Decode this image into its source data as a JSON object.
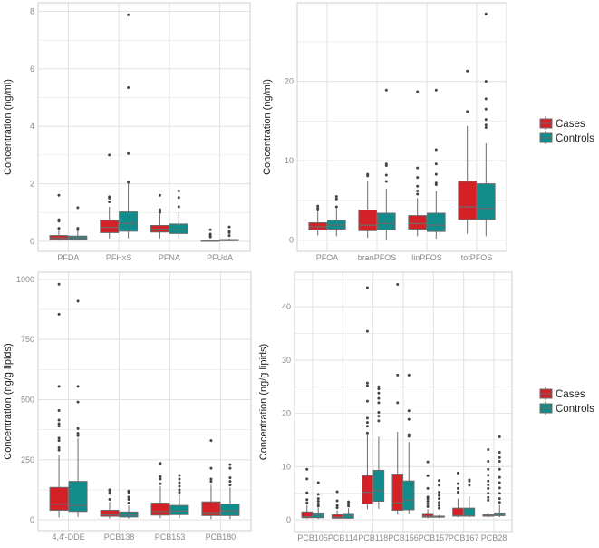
{
  "colors": {
    "Cases": "#d42027",
    "Controls": "#128b8b",
    "outline": "#6b6b6b",
    "grid": "#e3e3e3",
    "panel_border": "#cfcfcf"
  },
  "chart_data": [
    {
      "type": "boxplot",
      "ylabel": "Concentration (ng/ml)",
      "ylim": [
        -0.35,
        8.3
      ],
      "yticks": [
        0,
        2,
        4,
        6,
        8
      ],
      "yminor": [
        1,
        3,
        5,
        7
      ],
      "legend": null,
      "series_names": [
        "Cases",
        "Controls"
      ],
      "categories": [
        "PFDA",
        "PFHxS",
        "PFNA",
        "PFUdA"
      ],
      "stats_order": [
        "whisker_low",
        "q1",
        "median",
        "q3",
        "whisker_high",
        "outliers"
      ],
      "boxes": [
        [
          [
            0.05,
            0.07,
            0.12,
            0.2,
            0.4,
            [
              0.45,
              0.7,
              0.75,
              1.6
            ]
          ],
          [
            0.05,
            0.07,
            0.12,
            0.18,
            0.35,
            [
              0.4,
              0.45,
              1.17
            ]
          ]
        ],
        [
          [
            0.1,
            0.3,
            0.48,
            0.73,
            1.2,
            [
              1.37,
              1.5,
              1.55,
              3.0
            ]
          ],
          [
            0.1,
            0.35,
            0.62,
            1.02,
            2.0,
            [
              2.05,
              3.05,
              5.35,
              7.88
            ]
          ]
        ],
        [
          [
            0.1,
            0.32,
            0.42,
            0.55,
            0.95,
            [
              1.0,
              1.05,
              1.1,
              1.6
            ]
          ],
          [
            0.1,
            0.27,
            0.4,
            0.6,
            1.0,
            [
              1.2,
              1.52,
              1.75
            ]
          ]
        ],
        [
          [
            0.0,
            0.01,
            0.02,
            0.03,
            0.05,
            [
              0.15,
              0.2,
              0.25,
              0.4
            ]
          ],
          [
            0.0,
            0.02,
            0.04,
            0.06,
            0.1,
            [
              0.2,
              0.3,
              0.35,
              0.5
            ]
          ]
        ]
      ]
    },
    {
      "type": "boxplot",
      "ylabel": "Concentration (ng/ml)",
      "ylim": [
        -1.4,
        29.9
      ],
      "yticks": [
        0,
        10,
        20
      ],
      "yminor": [
        5,
        15,
        25
      ],
      "legend": {
        "position": "right",
        "entries": [
          "Cases",
          "Controls"
        ]
      },
      "series_names": [
        "Cases",
        "Controls"
      ],
      "categories": [
        "PFOA",
        "branPFOS",
        "linPFOS",
        "totPFOS"
      ],
      "boxes": [
        [
          [
            0.6,
            1.3,
            1.7,
            2.2,
            3.6,
            [
              3.8,
              4.0,
              4.3
            ]
          ],
          [
            0.5,
            1.4,
            1.9,
            2.5,
            4.0,
            [
              4.2,
              5.2,
              5.5
            ]
          ]
        ],
        [
          [
            0.3,
            1.2,
            1.9,
            3.8,
            7.4,
            [
              8.1,
              8.3
            ]
          ],
          [
            0.1,
            1.3,
            2.1,
            3.4,
            6.5,
            [
              7.4,
              8.2,
              9.4,
              9.6,
              18.9
            ]
          ]
        ],
        [
          [
            0.5,
            1.4,
            2.1,
            3.1,
            5.3,
            [
              5.8,
              6.2,
              6.8,
              7.9,
              9.1,
              18.7
            ]
          ],
          [
            0.2,
            1.1,
            1.9,
            3.4,
            6.2,
            [
              7.0,
              7.2,
              8.3,
              9.6,
              11.4,
              18.9
            ]
          ]
        ],
        [
          [
            0.8,
            2.6,
            4.2,
            7.4,
            14.4,
            [
              16.2,
              21.3
            ]
          ],
          [
            0.5,
            2.6,
            4.0,
            7.1,
            12.2,
            [
              14.2,
              14.5,
              15.2,
              16.5,
              17.8,
              20.0,
              28.5
            ]
          ]
        ]
      ]
    },
    {
      "type": "boxplot",
      "ylabel": "Concentration (ng/g lipids)",
      "ylim": [
        -45,
        1030
      ],
      "yticks": [
        0,
        250,
        500,
        750,
        1000
      ],
      "yminor": [
        125,
        375,
        625,
        875
      ],
      "legend": null,
      "series_names": [
        "Cases",
        "Controls"
      ],
      "categories": [
        "4,4'-DDE",
        "PCB138",
        "PCB153",
        "PCB180"
      ],
      "boxes": [
        [
          [
            10,
            40,
            65,
            135,
            270,
            [
              290,
              300,
              330,
              340,
              390,
              400,
              415,
              455,
              555,
              855,
              980
            ]
          ],
          [
            12,
            35,
            60,
            160,
            340,
            [
              350,
              360,
              380,
              490,
              555,
              910
            ]
          ]
        ],
        [
          [
            5,
            15,
            22,
            40,
            75,
            [
              85,
              110,
              120,
              125
            ]
          ],
          [
            5,
            12,
            20,
            33,
            60,
            [
              70,
              85,
              95,
              115,
              120
            ]
          ]
        ],
        [
          [
            7,
            20,
            35,
            70,
            140,
            [
              150,
              170,
              180,
              235
            ]
          ],
          [
            8,
            22,
            37,
            60,
            105,
            [
              115,
              125,
              140,
              155,
              170,
              185
            ]
          ]
        ],
        [
          [
            3,
            18,
            30,
            75,
            145,
            [
              160,
              170,
              215,
              330
            ]
          ],
          [
            3,
            18,
            37,
            66,
            135,
            [
              145,
              160,
              175,
              215,
              230
            ]
          ]
        ]
      ]
    },
    {
      "type": "boxplot",
      "ylabel": "Concentration (ng/g lipids)",
      "ylim": [
        -2.2,
        46.5
      ],
      "yticks": [
        0,
        10,
        20,
        30,
        40
      ],
      "yminor": [
        5,
        15,
        25,
        35,
        45
      ],
      "legend": {
        "position": "right",
        "entries": [
          "Cases",
          "Controls"
        ]
      },
      "series_names": [
        "Cases",
        "Controls"
      ],
      "categories": [
        "PCB105",
        "PCB114",
        "PCB118",
        "PCB156",
        "PCB157",
        "PCB167",
        "PCB28"
      ],
      "boxes": [
        [
          [
            0.2,
            0.4,
            0.6,
            1.5,
            2.8,
            [
              3.2,
              3.8,
              5.1,
              7.7,
              9.5
            ]
          ],
          [
            0.2,
            0.4,
            0.9,
            1.3,
            2.3,
            [
              2.6,
              3.0,
              3.5,
              4.0,
              4.8,
              7.0
            ]
          ]
        ],
        [
          [
            0.2,
            0.3,
            0.5,
            1.0,
            1.8,
            [
              2.3,
              2.7,
              3.6,
              5.3
            ]
          ],
          [
            0.2,
            0.3,
            0.8,
            1.2,
            2.2,
            [
              2.6,
              3.0,
              3.4
            ]
          ]
        ],
        [
          [
            2.0,
            3.0,
            5.2,
            8.3,
            16.0,
            [
              16.3,
              17.6,
              18.3,
              19.1,
              22.3,
              25.2,
              25.7,
              35.4,
              43.6
            ]
          ],
          [
            2.1,
            3.5,
            5.5,
            9.3,
            15.6,
            [
              18.6,
              19.5,
              20.2,
              22.0,
              22.8,
              23.8,
              24.6,
              25.0
            ]
          ]
        ],
        [
          [
            1.0,
            1.8,
            3.2,
            8.6,
            16.5,
            [
              22.0,
              27.2,
              44.2
            ]
          ],
          [
            1.2,
            1.9,
            3.7,
            7.3,
            14.6,
            [
              15.7,
              16.0,
              18.9,
              20.5,
              27.2
            ]
          ]
        ],
        [
          [
            0.3,
            0.5,
            0.7,
            1.2,
            2.0,
            [
              2.5,
              3.0,
              3.5,
              4.0,
              4.3,
              5.9,
              8.3,
              10.9
            ]
          ],
          [
            0.3,
            0.5,
            0.6,
            0.7,
            0.9,
            [
              2.2,
              2.7,
              3.3,
              4.0,
              4.6,
              5.2,
              6.5,
              7.4
            ]
          ]
        ],
        [
          [
            0.5,
            0.7,
            0.8,
            2.2,
            4.0,
            [
              5.2,
              5.9,
              6.8,
              8.8
            ]
          ],
          [
            0.5,
            0.7,
            0.8,
            2.2,
            4.4,
            [
              6.5,
              7.3,
              7.5
            ]
          ]
        ],
        [
          [
            0.5,
            0.7,
            0.9,
            1.0,
            1.3,
            [
              3.7,
              4.2,
              5.0,
              5.9,
              6.6,
              7.3,
              8.4,
              9.5,
              11.0,
              13.2
            ]
          ],
          [
            0.5,
            0.8,
            1.0,
            1.3,
            2.8,
            [
              3.3,
              4.0,
              5.0,
              6.0,
              7.0,
              8.0,
              9.5,
              11.0,
              11.7,
              12.7,
              15.6
            ]
          ]
        ]
      ]
    }
  ]
}
